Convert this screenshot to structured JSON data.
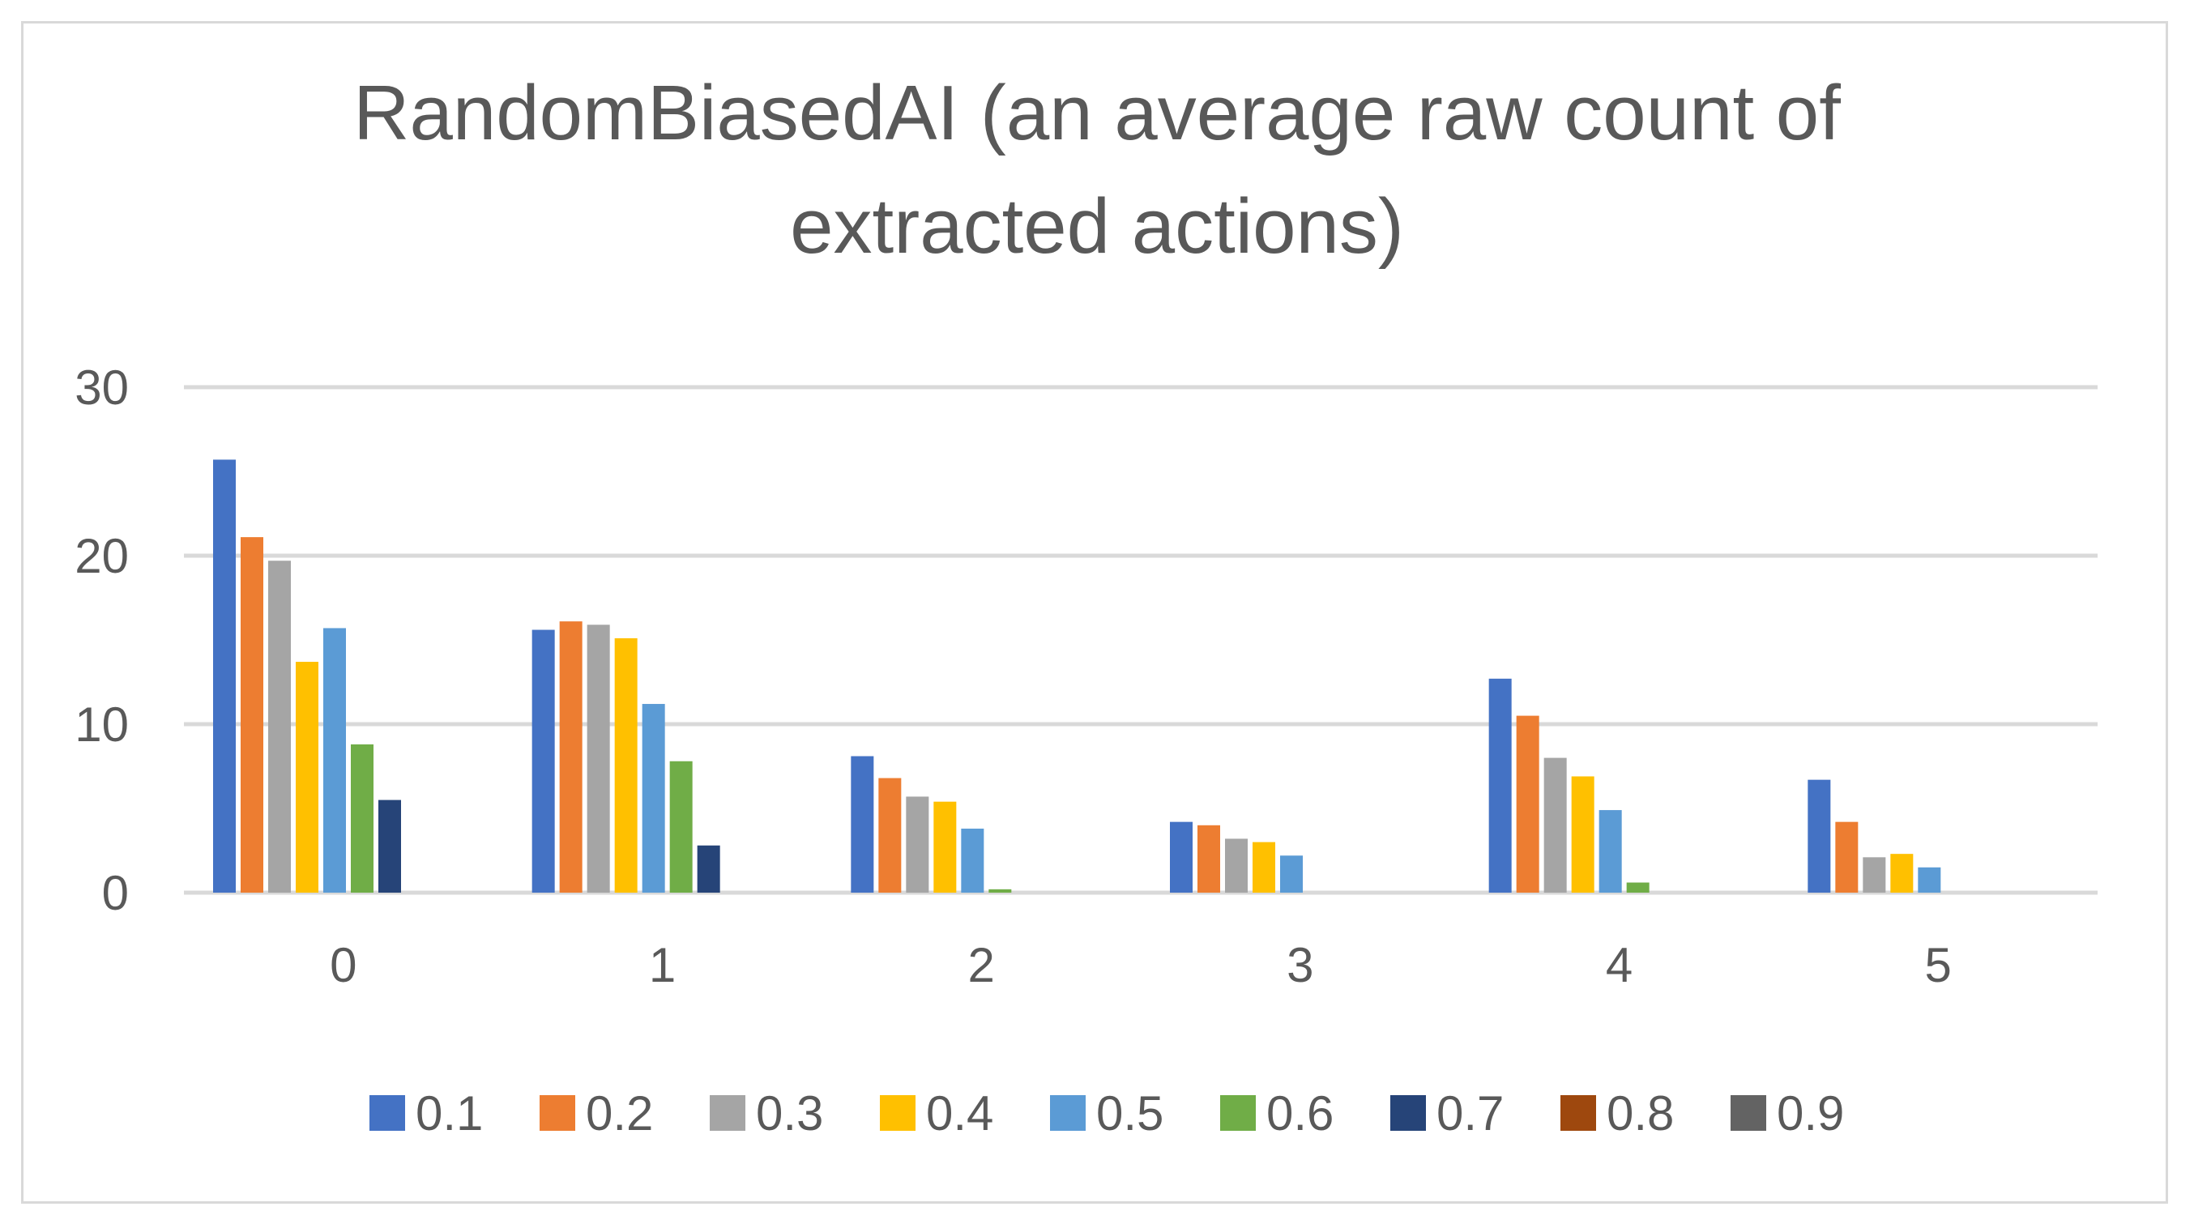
{
  "chart_data": {
    "type": "bar",
    "title": "RandomBiasedAI (an average raw count of extracted actions)",
    "title_lines": [
      "RandomBiasedAI (an average raw count of",
      "extracted actions)"
    ],
    "xlabel": "",
    "ylabel": "",
    "categories": [
      "0",
      "1",
      "2",
      "3",
      "4",
      "5"
    ],
    "ylim": [
      0,
      30
    ],
    "yticks": [
      0,
      10,
      20,
      30
    ],
    "grid": true,
    "legend_position": "bottom",
    "series": [
      {
        "name": "0.1",
        "color": "#4472C4",
        "values": [
          25.7,
          15.6,
          8.1,
          4.2,
          12.7,
          6.7
        ]
      },
      {
        "name": "0.2",
        "color": "#ED7D31",
        "values": [
          21.1,
          16.1,
          6.8,
          4.0,
          10.5,
          4.2
        ]
      },
      {
        "name": "0.3",
        "color": "#A5A5A5",
        "values": [
          19.7,
          15.9,
          5.7,
          3.2,
          8.0,
          2.1
        ]
      },
      {
        "name": "0.4",
        "color": "#FFC000",
        "values": [
          13.7,
          15.1,
          5.4,
          3.0,
          6.9,
          2.3
        ]
      },
      {
        "name": "0.5",
        "color": "#5B9BD5",
        "values": [
          15.7,
          11.2,
          3.8,
          2.2,
          4.9,
          1.5
        ]
      },
      {
        "name": "0.6",
        "color": "#70AD47",
        "values": [
          8.8,
          7.8,
          0.2,
          0,
          0.6,
          0
        ]
      },
      {
        "name": "0.7",
        "color": "#264478",
        "values": [
          5.5,
          2.8,
          0,
          0,
          0,
          0
        ]
      },
      {
        "name": "0.8",
        "color": "#9E480E",
        "values": [
          0,
          0,
          0,
          0,
          0,
          0
        ]
      },
      {
        "name": "0.9",
        "color": "#636363",
        "values": [
          0,
          0,
          0,
          0,
          0,
          0
        ]
      }
    ]
  }
}
